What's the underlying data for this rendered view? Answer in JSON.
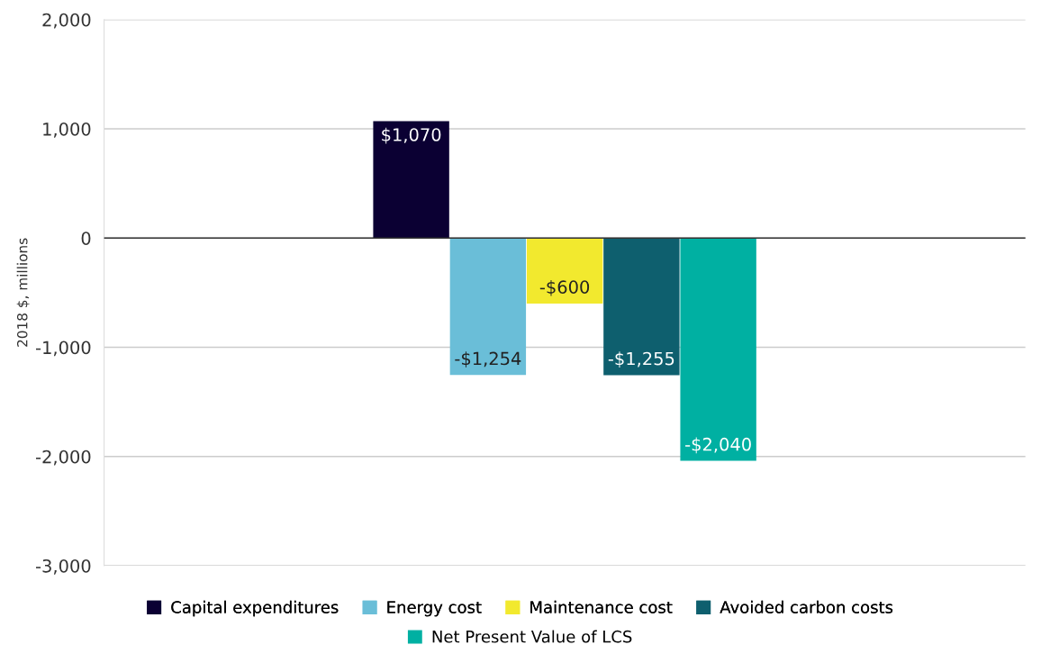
{
  "chart_data": {
    "type": "bar",
    "ylabel": "2018 $, millions",
    "categories": [
      null
    ],
    "series": [
      {
        "name": "Capital expenditures",
        "color": "#0b0033",
        "values": [
          1070
        ],
        "value_labels": [
          "$1,070"
        ]
      },
      {
        "name": "Energy cost",
        "color": "#6abed8",
        "values": [
          -1254
        ],
        "value_labels": [
          "-$1,254"
        ]
      },
      {
        "name": "Maintenance cost",
        "color": "#f2e92e",
        "values": [
          -600
        ],
        "value_labels": [
          "-$600"
        ]
      },
      {
        "name": "Avoided carbon costs",
        "color": "#0e5f6e",
        "values": [
          -1255
        ],
        "value_labels": [
          "-$1,255"
        ]
      },
      {
        "name": "Net Present Value of LCS",
        "color": "#00b0a2",
        "values": [
          -2040
        ],
        "value_labels": [
          "-$2,040"
        ]
      }
    ],
    "ylim": [
      -3000,
      2000
    ],
    "yticks": [
      {
        "value": -3000,
        "label": "-3,000"
      },
      {
        "value": -2000,
        "label": "-2,000"
      },
      {
        "value": -1000,
        "label": "-1,000"
      },
      0,
      {
        "value": 1000,
        "label": "1,000"
      },
      {
        "value": 2000,
        "label": "2,000"
      }
    ],
    "grid": "y",
    "legend": "bottom"
  }
}
